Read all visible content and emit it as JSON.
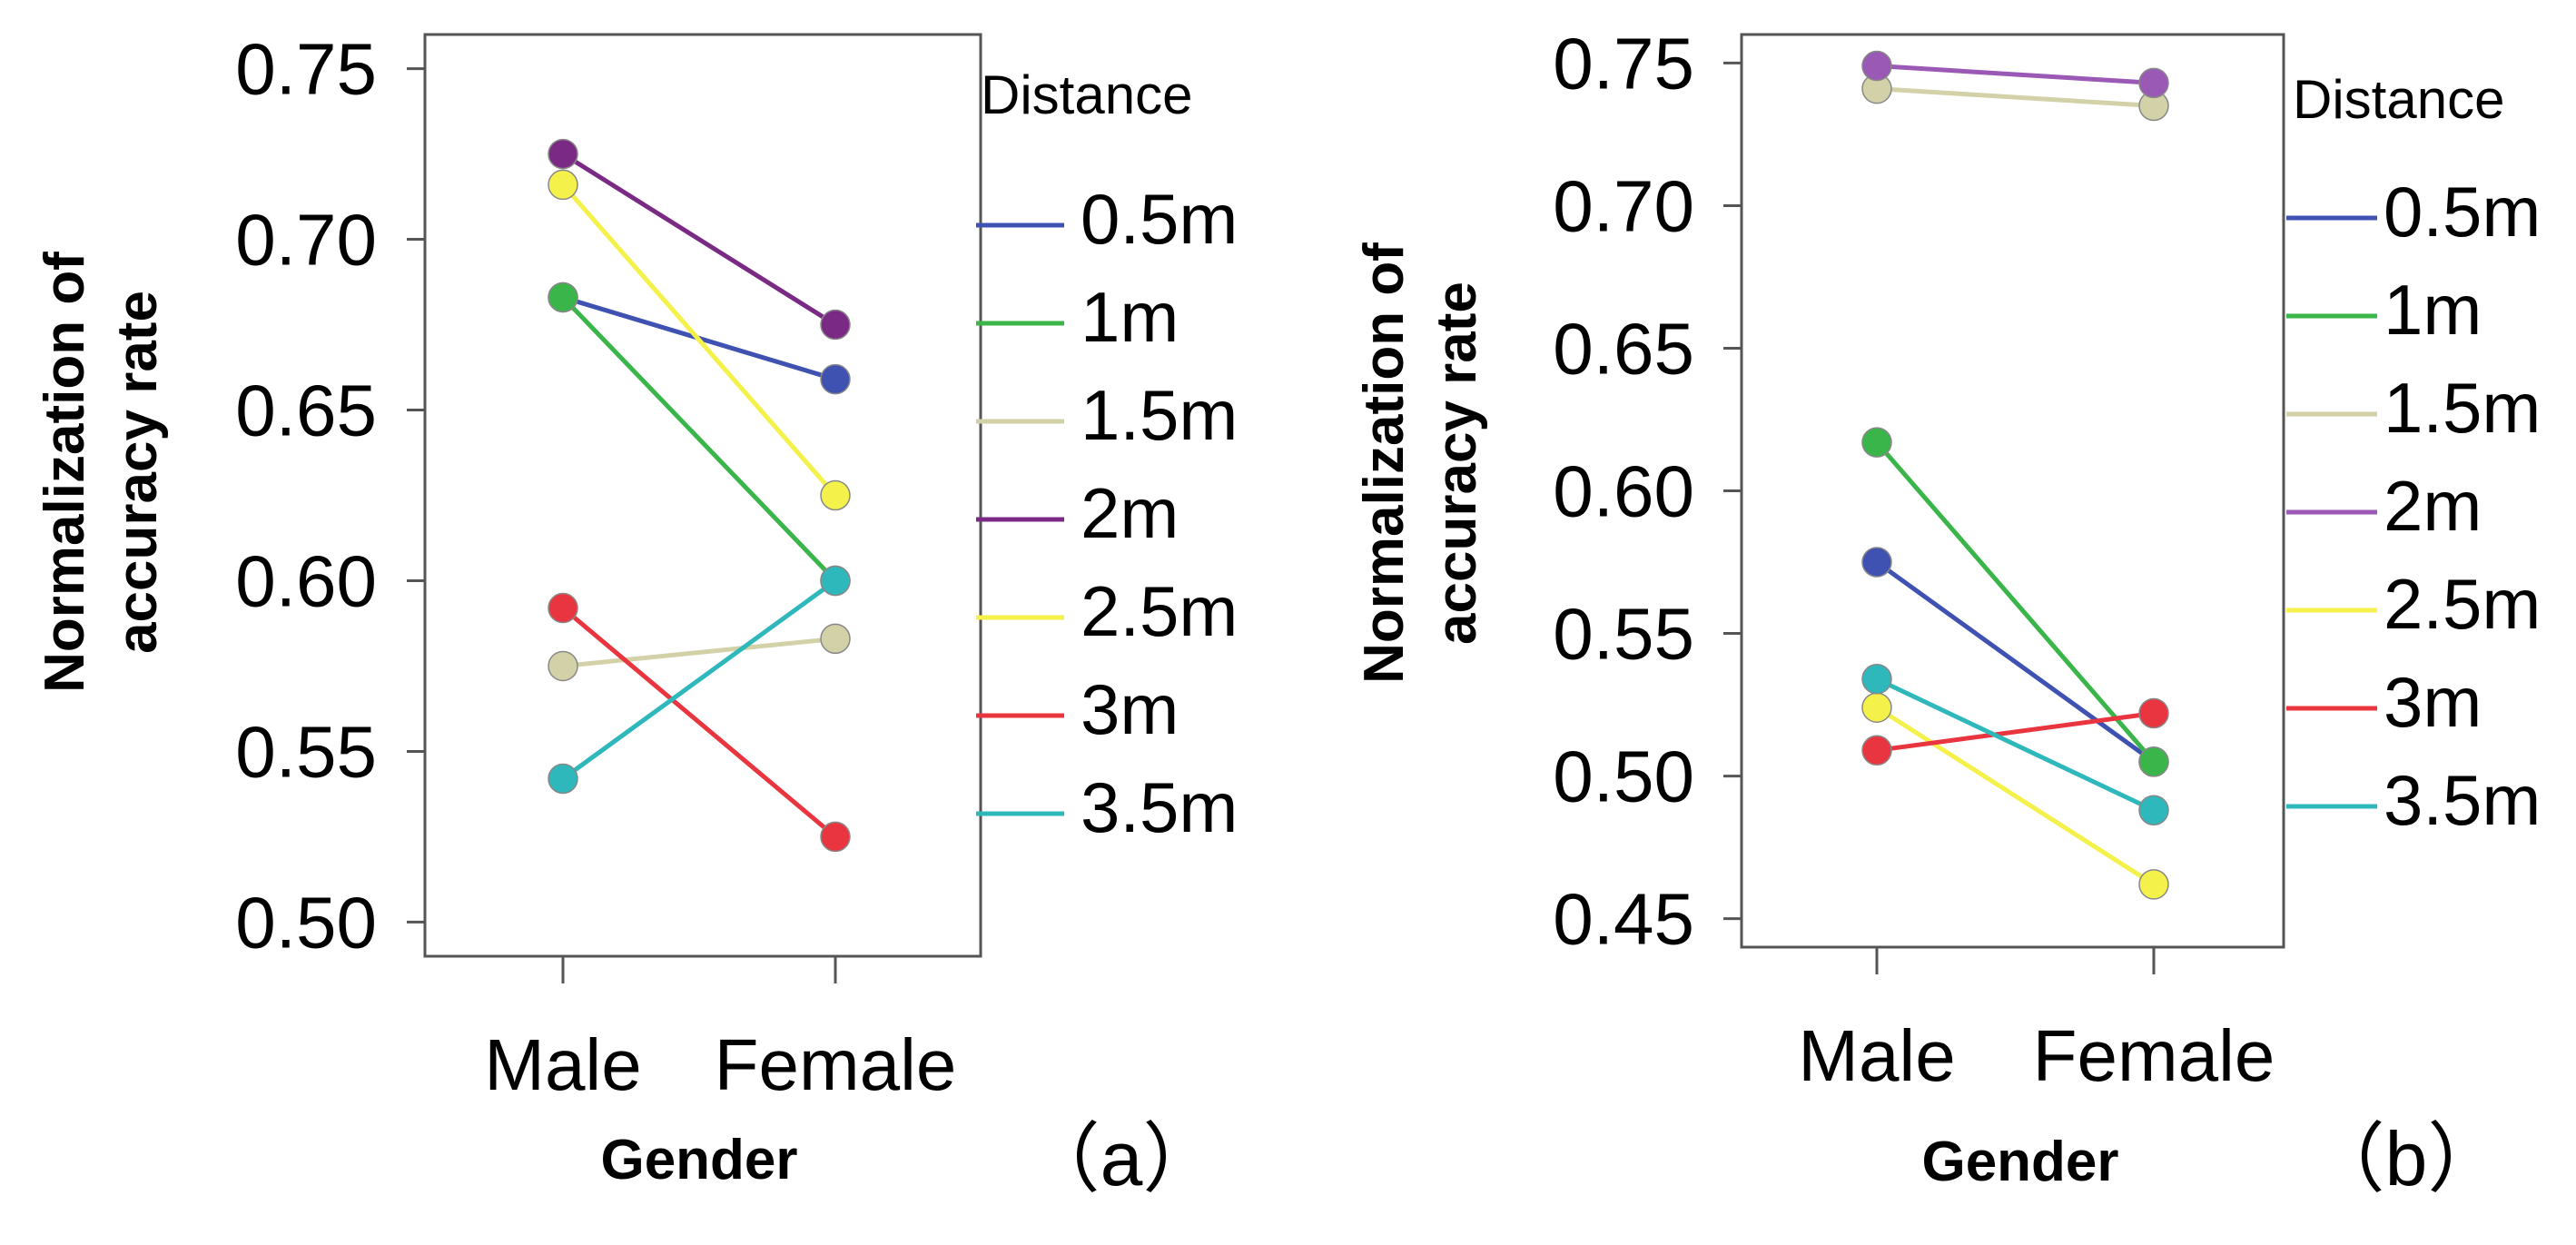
{
  "chart_data": [
    {
      "type": "line",
      "panel_label": "（a）",
      "xlabel": "Gender",
      "ylabel_lines": [
        "Normalization of",
        "accuracy rate"
      ],
      "categories": [
        "Male",
        "Female"
      ],
      "yticks": [
        "0.50",
        "0.55",
        "0.60",
        "0.65",
        "0.70",
        "0.75"
      ],
      "ylim": [
        0.49,
        0.76
      ],
      "legend_title": "Distance",
      "series": [
        {
          "name": "0.5m",
          "color": "#3f51b1",
          "values": [
            0.683,
            0.659
          ]
        },
        {
          "name": "1m",
          "color": "#3ab54a",
          "values": [
            0.683,
            0.6
          ]
        },
        {
          "name": "1.5m",
          "color": "#d3d1a8",
          "values": [
            0.575,
            0.583
          ]
        },
        {
          "name": "2m",
          "color": "#7a2a85",
          "values": [
            0.725,
            0.675
          ]
        },
        {
          "name": "2.5m",
          "color": "#f4f24a",
          "values": [
            0.716,
            0.625
          ]
        },
        {
          "name": "3m",
          "color": "#e8353f",
          "values": [
            0.592,
            0.525
          ]
        },
        {
          "name": "3.5m",
          "color": "#2fb8bc",
          "values": [
            0.542,
            0.6
          ]
        }
      ]
    },
    {
      "type": "line",
      "panel_label": "（b）",
      "xlabel": "Gender",
      "ylabel_lines": [
        "Normalization of",
        "accuracy rate"
      ],
      "categories": [
        "Male",
        "Female"
      ],
      "yticks": [
        "0.45",
        "0.50",
        "0.55",
        "0.60",
        "0.65",
        "0.70",
        "0.75"
      ],
      "ylim": [
        0.44,
        0.76
      ],
      "legend_title": "Distance",
      "series": [
        {
          "name": "0.5m",
          "color": "#3f51b1",
          "values": [
            0.575,
            0.505
          ]
        },
        {
          "name": "1m",
          "color": "#3ab54a",
          "values": [
            0.617,
            0.505
          ]
        },
        {
          "name": "1.5m",
          "color": "#d3d1a8",
          "values": [
            0.741,
            0.735
          ]
        },
        {
          "name": "2m",
          "color": "#9b59b6",
          "values": [
            0.749,
            0.743
          ]
        },
        {
          "name": "2.5m",
          "color": "#f4f24a",
          "values": [
            0.524,
            0.462
          ]
        },
        {
          "name": "3m",
          "color": "#e8353f",
          "values": [
            0.509,
            0.522
          ]
        },
        {
          "name": "3.5m",
          "color": "#2fb8bc",
          "values": [
            0.534,
            0.488
          ]
        }
      ]
    }
  ]
}
